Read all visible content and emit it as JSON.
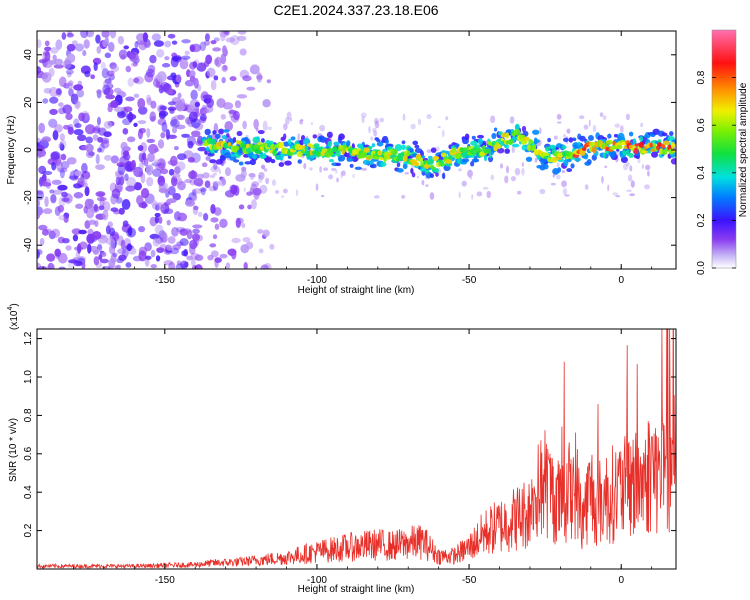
{
  "title": "C2E1.2024.337.23.18.E06",
  "colors": {
    "signal_line": "#e8302a",
    "spectrogram_cmap": [
      "#ffffff",
      "#b9a3f4",
      "#7a2cf0",
      "#3b12ff",
      "#0055ff",
      "#00d0e8",
      "#10e060",
      "#d8f000",
      "#ff8a00",
      "#ff1010",
      "#ff6aa8"
    ]
  },
  "chart_data": [
    {
      "type": "heatmap",
      "xlabel": "Height of straight line (km)",
      "ylabel": "Frequency (Hz)",
      "xlim": [
        -192,
        18
      ],
      "ylim": [
        -50,
        50
      ],
      "xticks": [
        -150,
        -100,
        -50,
        0
      ],
      "xtick_labels": [
        "-150",
        "-100",
        "-50",
        "0"
      ],
      "yticks": [
        40,
        20,
        0,
        -20,
        -40
      ],
      "ytick_labels": [
        "40",
        "20",
        "0",
        "-20",
        "-40"
      ],
      "colorbar": {
        "label": "Normalized spectral amplitude",
        "range": [
          0,
          1
        ],
        "ticks": [
          0.0,
          0.2,
          0.4,
          0.6,
          0.8
        ],
        "tick_labels": [
          "0.0",
          "0.2",
          "0.4",
          "0.6",
          "0.8"
        ]
      },
      "noise_region_x": [
        -192,
        -122
      ],
      "signal_ridge": {
        "x": [
          -137,
          -120,
          -100,
          -80,
          -70,
          -62,
          -55,
          -45,
          -38,
          -33,
          -25,
          -20,
          -17,
          -10,
          0,
          10,
          18
        ],
        "y": [
          2,
          1,
          0,
          -2,
          -3,
          -6,
          -2,
          0,
          5,
          6,
          -3,
          -2,
          -2,
          1,
          2,
          1,
          1
        ],
        "peak_amplitude": 1.0
      }
    },
    {
      "type": "line",
      "xlabel": "Height of straight line (km)",
      "ylabel": "SNR (10 * v/v)",
      "yscale_label": "(x10",
      "yscale_exponent": "4",
      "yscale_suffix": ")",
      "xlim": [
        -192,
        18
      ],
      "ylim": [
        0,
        1.25
      ],
      "xticks": [
        -150,
        -100,
        -50,
        0
      ],
      "xtick_labels": [
        "-150",
        "-100",
        "-50",
        "0"
      ],
      "yticks": [
        0.2,
        0.4,
        0.6,
        0.8,
        1.0,
        1.2
      ],
      "ytick_labels": [
        "0.2",
        "0.4",
        "0.6",
        "0.8",
        "1.0",
        "1.2"
      ],
      "series": [
        {
          "x": [
            -192,
            -180,
            -160,
            -150,
            -140,
            -135,
            -125,
            -115,
            -110,
            -100,
            -90,
            -80,
            -75,
            -70,
            -65,
            -60,
            -55,
            -50,
            -45,
            -40,
            -35,
            -30,
            -27,
            -25,
            -22,
            -20,
            -17,
            -15,
            -13,
            -10,
            -8,
            -5,
            0,
            3,
            5,
            8,
            10,
            12,
            15,
            18
          ],
          "y": [
            0.02,
            0.02,
            0.02,
            0.025,
            0.03,
            0.04,
            0.05,
            0.07,
            0.08,
            0.12,
            0.15,
            0.17,
            0.16,
            0.18,
            0.19,
            0.09,
            0.09,
            0.15,
            0.25,
            0.3,
            0.35,
            0.4,
            0.55,
            0.6,
            0.5,
            0.45,
            0.55,
            0.6,
            0.35,
            0.55,
            0.45,
            0.5,
            0.55,
            0.58,
            0.6,
            0.62,
            0.72,
            0.65,
            0.7,
            0.8
          ]
        }
      ]
    }
  ]
}
